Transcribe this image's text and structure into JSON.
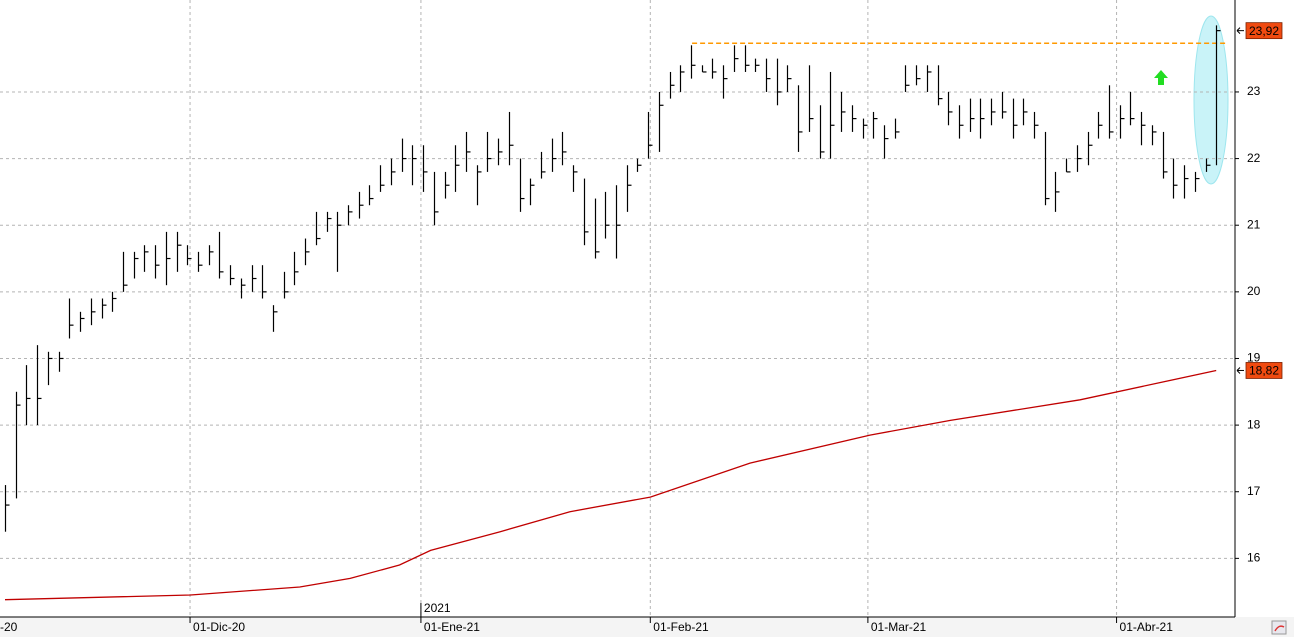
{
  "chart_data": {
    "type": "ohlc",
    "xlim": [
      -0.47,
      114.75
    ],
    "ylim": [
      15.12,
      24.38
    ],
    "yticks": [
      16,
      17,
      18,
      19,
      20,
      21,
      22,
      23
    ],
    "xticks": [
      {
        "value": -0.84,
        "label": "-20"
      },
      {
        "value": 17.26,
        "label": "01-Dic-20"
      },
      {
        "value": 38.8,
        "label": "01-Ene-21"
      },
      {
        "value": 60.2,
        "label": "01-Feb-21"
      },
      {
        "value": 80.5,
        "label": "01-Mar-21"
      },
      {
        "value": 103.7,
        "label": "01-Abr-21"
      }
    ],
    "year_marker": {
      "value": 38.8,
      "label": "2021"
    },
    "grid": true,
    "bar_color": "#000000",
    "high": [
      17.1,
      18.5,
      18.9,
      19.2,
      19.1,
      19.1,
      19.9,
      19.7,
      19.9,
      19.9,
      20.0,
      20.6,
      20.6,
      20.7,
      20.7,
      20.9,
      20.9,
      20.7,
      20.6,
      20.7,
      20.9,
      20.4,
      20.2,
      20.4,
      20.4,
      19.8,
      20.3,
      20.6,
      20.8,
      21.2,
      21.2,
      21.2,
      21.3,
      21.5,
      21.6,
      21.9,
      22.0,
      22.3,
      22.2,
      22.2,
      21.8,
      21.8,
      22.2,
      22.4,
      21.9,
      22.4,
      22.3,
      22.7,
      22.0,
      21.7,
      22.1,
      22.3,
      22.4,
      21.9,
      21.7,
      21.4,
      21.5,
      21.6,
      21.9,
      22.0,
      22.7,
      23.0,
      23.3,
      23.4,
      23.7,
      23.4,
      23.5,
      23.4,
      23.7,
      23.7,
      23.5,
      23.5,
      23.5,
      23.4,
      23.1,
      23.4,
      22.8,
      23.3,
      23.0,
      22.8,
      22.6,
      22.7,
      22.5,
      22.6,
      23.4,
      23.4,
      23.4,
      23.4,
      23.0,
      22.8,
      22.9,
      22.9,
      22.9,
      23.0,
      22.9,
      22.9,
      22.7,
      22.4,
      21.8,
      22.0,
      22.2,
      22.4,
      22.7,
      23.1,
      22.8,
      23.0,
      22.7,
      22.5,
      22.4,
      22.0,
      21.9,
      21.8,
      22.0,
      24.0
    ],
    "low": [
      16.4,
      16.9,
      18.0,
      18.0,
      18.6,
      18.8,
      19.3,
      19.4,
      19.5,
      19.6,
      19.7,
      20.0,
      20.2,
      20.3,
      20.2,
      20.1,
      20.3,
      20.4,
      20.3,
      20.4,
      20.2,
      20.1,
      19.9,
      20.0,
      19.9,
      19.4,
      19.9,
      20.1,
      20.4,
      20.7,
      20.9,
      20.3,
      21.0,
      21.1,
      21.3,
      21.5,
      21.6,
      21.8,
      21.6,
      21.5,
      21.0,
      21.4,
      21.5,
      21.8,
      21.3,
      21.8,
      21.9,
      21.9,
      21.2,
      21.3,
      21.7,
      21.8,
      21.9,
      21.5,
      20.7,
      20.5,
      20.8,
      20.5,
      21.2,
      21.8,
      22.0,
      22.1,
      22.9,
      23.0,
      23.2,
      23.3,
      23.2,
      22.9,
      23.3,
      23.3,
      23.3,
      23.0,
      22.8,
      23.0,
      22.1,
      22.4,
      22.0,
      22.0,
      22.4,
      22.4,
      22.3,
      22.3,
      22.0,
      22.3,
      23.0,
      23.1,
      23.0,
      22.8,
      22.5,
      22.3,
      22.4,
      22.3,
      22.5,
      22.6,
      22.3,
      22.5,
      22.3,
      21.3,
      21.2,
      21.8,
      21.8,
      21.9,
      22.3,
      22.3,
      22.3,
      22.5,
      22.2,
      22.2,
      21.7,
      21.4,
      21.4,
      21.5,
      21.8,
      21.9
    ],
    "close": [
      16.8,
      18.3,
      18.4,
      18.4,
      19.0,
      19.0,
      19.5,
      19.6,
      19.7,
      19.8,
      19.9,
      20.1,
      20.5,
      20.6,
      20.4,
      20.5,
      20.7,
      20.5,
      20.4,
      20.6,
      20.3,
      20.2,
      20.1,
      20.2,
      20.0,
      19.7,
      20.0,
      20.3,
      20.6,
      20.8,
      21.1,
      21.0,
      21.2,
      21.3,
      21.4,
      21.6,
      21.8,
      22.0,
      22.0,
      21.8,
      21.2,
      21.6,
      21.9,
      22.1,
      21.8,
      22.0,
      22.1,
      22.2,
      21.4,
      21.6,
      21.8,
      22.0,
      22.1,
      21.8,
      20.9,
      20.6,
      21.0,
      21.0,
      21.6,
      21.9,
      22.2,
      22.8,
      23.1,
      23.3,
      23.4,
      23.3,
      23.3,
      23.2,
      23.5,
      23.4,
      23.4,
      23.2,
      23.0,
      23.2,
      22.4,
      22.6,
      22.1,
      22.5,
      22.7,
      22.6,
      22.5,
      22.6,
      22.3,
      22.4,
      23.1,
      23.2,
      23.3,
      22.9,
      22.7,
      22.5,
      22.6,
      22.6,
      22.7,
      22.7,
      22.5,
      22.7,
      22.5,
      21.4,
      21.5,
      21.8,
      22.0,
      22.2,
      22.5,
      22.4,
      22.6,
      22.6,
      22.5,
      22.4,
      21.8,
      21.6,
      21.7,
      21.7,
      21.9,
      23.92
    ],
    "moving_average": {
      "color": "#c00000",
      "x": [
        0,
        17.3,
        27.5,
        32.2,
        36.8,
        39.7,
        46.2,
        52.7,
        60.2,
        69.5,
        80.7,
        88.2,
        100.3,
        113
      ],
      "values": [
        15.38,
        15.45,
        15.57,
        15.7,
        15.9,
        16.12,
        16.4,
        16.7,
        16.92,
        17.43,
        17.85,
        18.07,
        18.38,
        18.82
      ]
    },
    "resistance": {
      "color": "#ff9900",
      "value": 23.73,
      "x": [
        64.1,
        114
      ]
    },
    "price_markers": [
      {
        "value": 23.92,
        "label": "23,92",
        "color": "#f04a10"
      },
      {
        "value": 18.82,
        "label": "18,82",
        "color": "#f04a10"
      }
    ]
  }
}
